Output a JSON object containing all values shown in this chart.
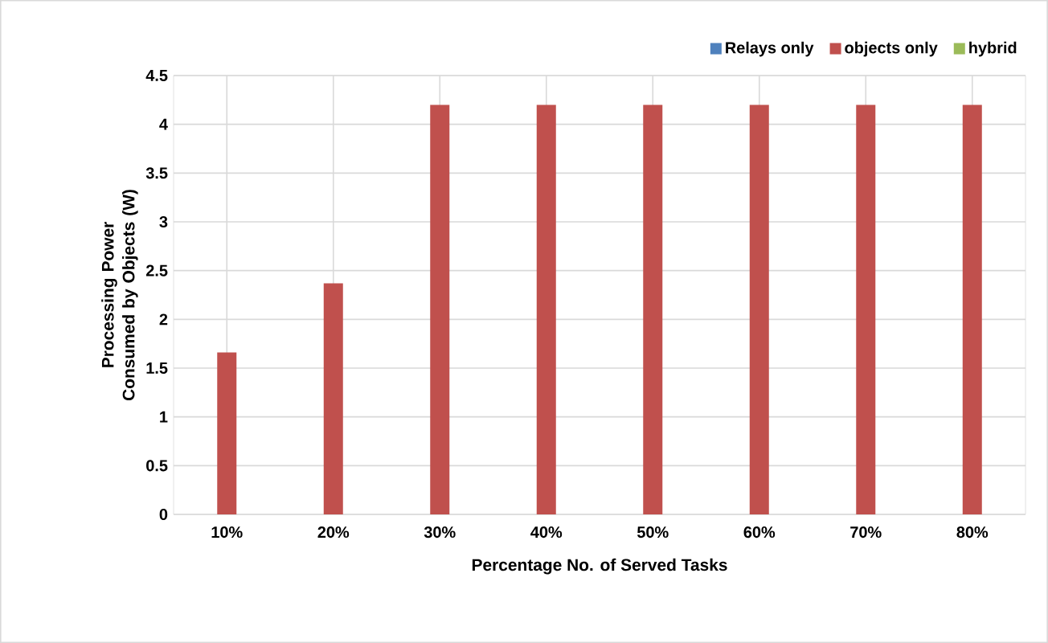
{
  "chart_data": {
    "type": "bar",
    "xlabel": "Percentage No. of Served Tasks",
    "ylabel": "Processing Power Consumed by Objects (W)",
    "categories": [
      "10%",
      "20%",
      "30%",
      "40%",
      "50%",
      "60%",
      "70%",
      "80%"
    ],
    "series": [
      {
        "name": "Relays only",
        "color": "#4f81bd",
        "values": [
          0,
          0,
          0,
          0,
          0,
          0,
          0,
          0
        ]
      },
      {
        "name": "objects only",
        "color": "#c0504d",
        "values": [
          1.66,
          2.37,
          4.2,
          4.2,
          4.2,
          4.2,
          4.2,
          4.2
        ]
      },
      {
        "name": "hybrid",
        "color": "#9bbb59",
        "values": [
          0,
          0,
          0,
          0,
          0,
          0,
          0,
          0
        ]
      }
    ],
    "ylim": [
      0,
      4.5
    ],
    "yticks": [
      0,
      0.5,
      1,
      1.5,
      2,
      2.5,
      3,
      3.5,
      4,
      4.5
    ],
    "grid": true,
    "legend": "top right"
  }
}
